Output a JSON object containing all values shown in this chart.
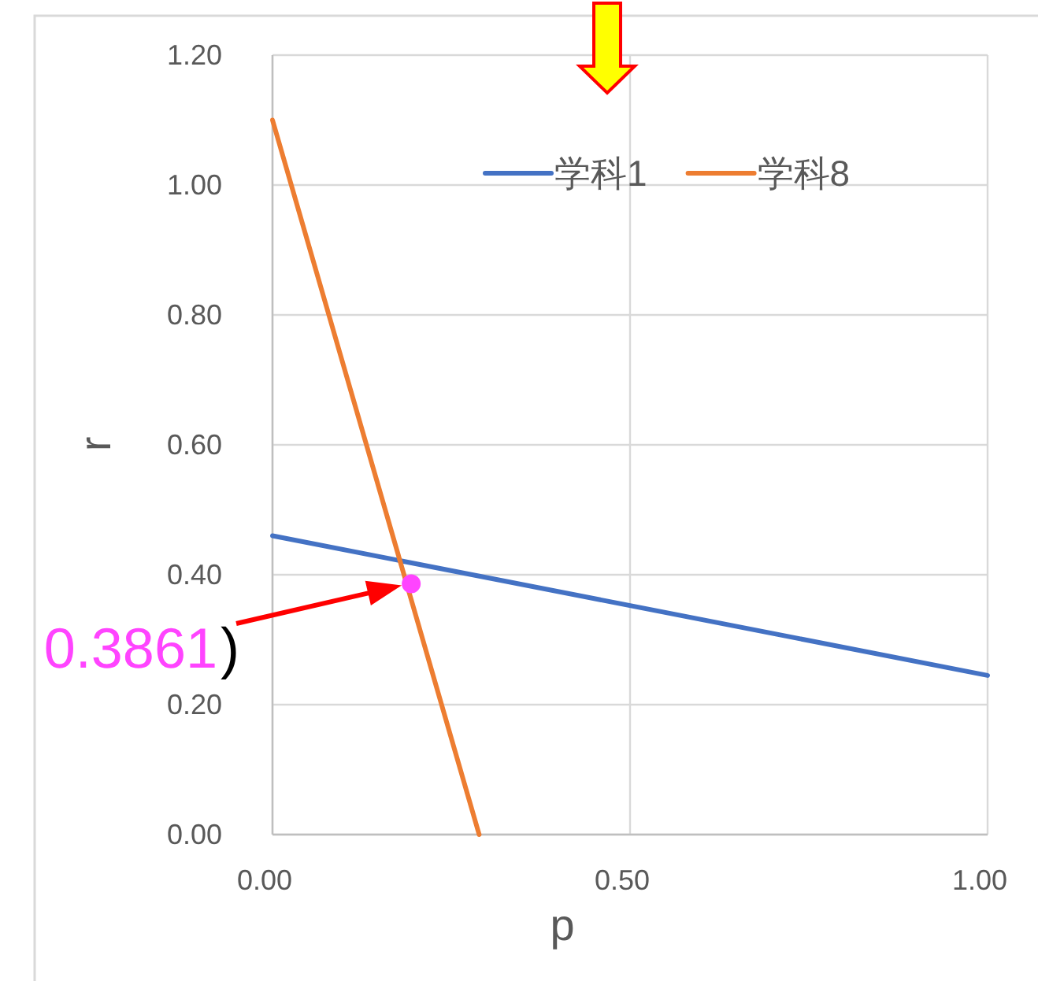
{
  "chart_data": {
    "type": "line",
    "xlabel": "p",
    "ylabel": "r",
    "series": [
      {
        "name": "学科1",
        "color": "#4472c4",
        "x": [
          0,
          1
        ],
        "values": [
          0.46,
          0.245
        ]
      },
      {
        "name": "学科8",
        "color": "#ed7d31",
        "x": [
          0,
          0.289
        ],
        "values": [
          1.1,
          0
        ]
      },
      {
        "type": "scatter",
        "color": "#ff44ff",
        "x": [
          0.194
        ],
        "values": [
          0.3861
        ]
      }
    ],
    "annotations": [
      "0.3861",
      ")"
    ],
    "xlim": [
      0,
      1
    ],
    "xticks": [
      {
        "value": 0,
        "label": "0.00"
      },
      {
        "value": 0.5,
        "label": "0.50"
      },
      {
        "value": 1,
        "label": "1.00"
      }
    ],
    "ylim": [
      0,
      1.2
    ],
    "yticks": [
      {
        "value": 0,
        "label": "0.00"
      },
      {
        "value": 0.2,
        "label": "0.20"
      },
      {
        "value": 0.4,
        "label": "0.40"
      },
      {
        "value": 0.6,
        "label": "0.60"
      },
      {
        "value": 0.8,
        "label": "0.80"
      },
      {
        "value": 1.0,
        "label": "1.00"
      },
      {
        "value": 1.2,
        "label": "1.20"
      }
    ],
    "grid": true,
    "legend": "top right",
    "line_style": "solid"
  }
}
